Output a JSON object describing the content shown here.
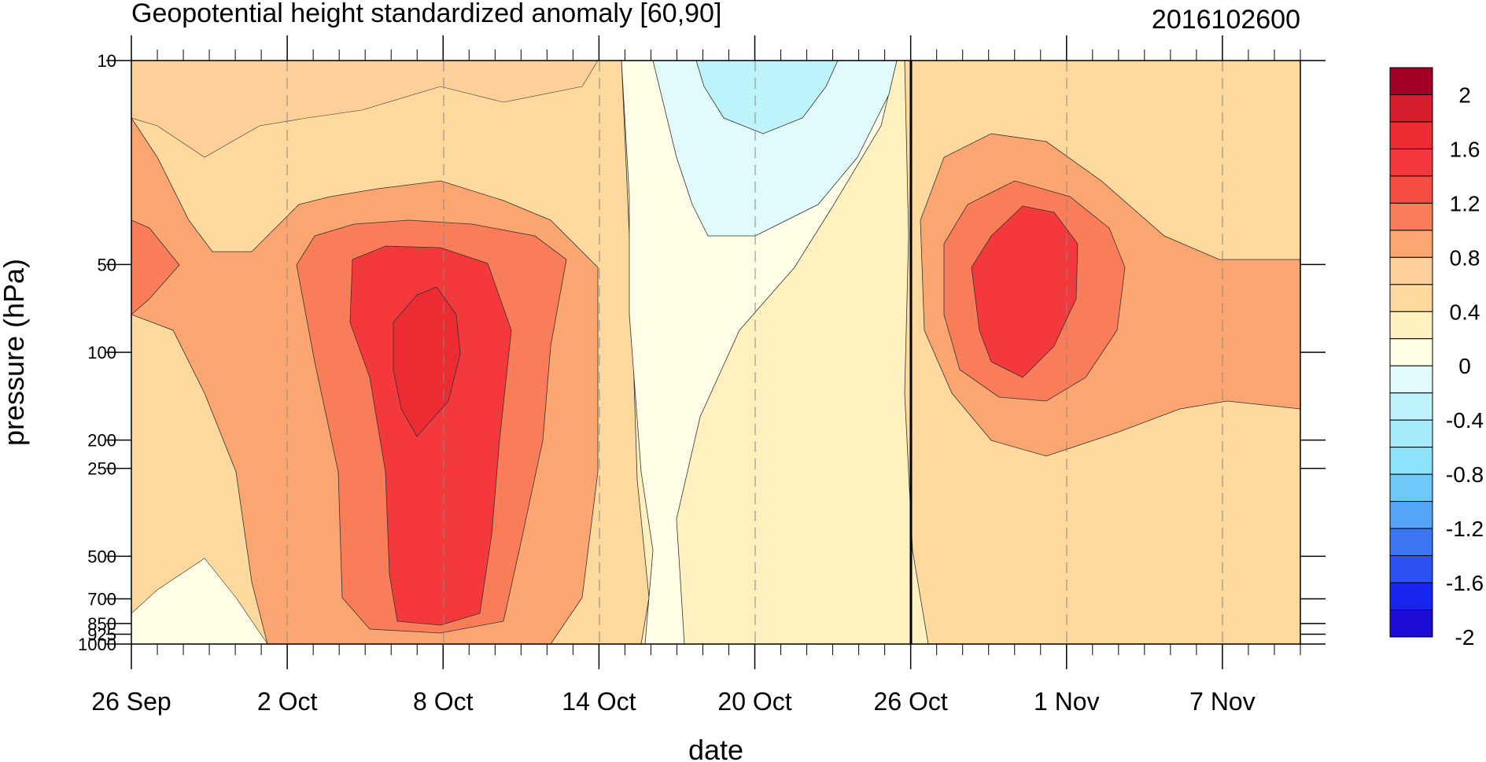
{
  "chart_data": {
    "type": "heatmap",
    "subtype": "filled-contour time-pressure cross-section",
    "title": "Geopotential height standardized anomaly [60,90]",
    "date_label": "2016102600",
    "xlabel": "date",
    "ylabel": "pressure (hPa)",
    "x_ticks": [
      "26 Sep",
      "2 Oct",
      "8 Oct",
      "14 Oct",
      "20 Oct",
      "26 Oct",
      "1 Nov",
      "7 Nov"
    ],
    "x_range": [
      "2016-09-26",
      "2016-11-10"
    ],
    "y_ticks": [
      10,
      50,
      100,
      200,
      250,
      500,
      700,
      850,
      925,
      1000
    ],
    "y_tick_labels": [
      "10",
      "50",
      "100",
      "200",
      "250",
      "500",
      "700",
      "850",
      "925",
      "1000"
    ],
    "y_scale": "log",
    "y_direction": "inverted",
    "y_range": [
      1000,
      10
    ],
    "current_date_marker": "2016-10-26",
    "grid_lines": "dashed vertical at labeled dates",
    "colorbar": {
      "labels": [
        "2",
        "1.6",
        "1.2",
        "0.8",
        "0.4",
        "0",
        "-0.4",
        "-0.8",
        "-1.2",
        "-1.6",
        "-2"
      ],
      "levels": [
        -2.2,
        -2.0,
        -1.8,
        -1.6,
        -1.4,
        -1.2,
        -1.0,
        -0.8,
        -0.6,
        -0.4,
        -0.2,
        0.0,
        0.2,
        0.4,
        0.6,
        0.8,
        1.0,
        1.2,
        1.4,
        1.6,
        1.8,
        2.0,
        2.2
      ],
      "colors": [
        "#1d0cd6",
        "#1824f0",
        "#2c52f4",
        "#3d76f5",
        "#55a3f8",
        "#6ec8fa",
        "#8de3fb",
        "#a5ebfb",
        "#bff3fb",
        "#e1fafc",
        "#fffde6",
        "#fff0bf",
        "#fed99e",
        "#fdd09a",
        "#fba670",
        "#f97d58",
        "#f64d42",
        "#f3393c",
        "#ed2b32",
        "#d81d2f",
        "#a30025"
      ]
    },
    "notable_values": [
      {
        "date": "2016-10-07",
        "pressure": 100,
        "value": 1.7
      },
      {
        "date": "2016-10-19",
        "pressure": 20,
        "value": -0.5
      },
      {
        "date": "2016-10-29",
        "pressure": 70,
        "value": 1.5
      },
      {
        "date": "2016-09-26",
        "pressure": 50,
        "value": 1.1
      },
      {
        "date": "2016-09-29",
        "pressure": 975,
        "value": -0.2
      }
    ]
  }
}
